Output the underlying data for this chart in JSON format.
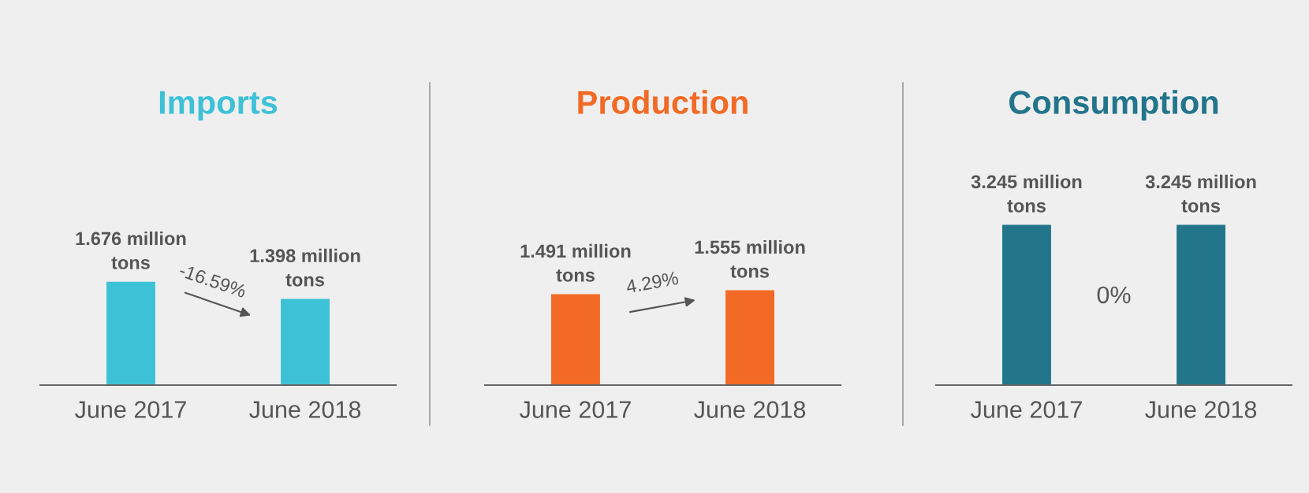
{
  "chart_data": [
    {
      "type": "bar",
      "title": "Imports",
      "categories": [
        "June 2017",
        "June 2018"
      ],
      "values": [
        1.676,
        1.398
      ],
      "color": "#3dc1d6",
      "value_labels": [
        "1.676 million\ntons",
        "1.398 million\ntons"
      ],
      "annotations": [
        "-16.59%"
      ]
    },
    {
      "type": "bar",
      "title": "Production",
      "categories": [
        "June 2017",
        "June 2018"
      ],
      "values": [
        1.491,
        1.555
      ],
      "color": "#f26a25",
      "value_labels": [
        "1.491 million\ntons",
        "1.555 million\ntons"
      ],
      "annotations": [
        "4.29%"
      ]
    },
    {
      "type": "bar",
      "title": "Consumption",
      "categories": [
        "June 2017",
        "June 2018"
      ],
      "values": [
        3.245,
        3.245
      ],
      "color": "#22758b",
      "value_labels": [
        "3.245 million\ntons",
        "3.245 million\ntons"
      ],
      "annotations": [
        "0%"
      ]
    }
  ]
}
